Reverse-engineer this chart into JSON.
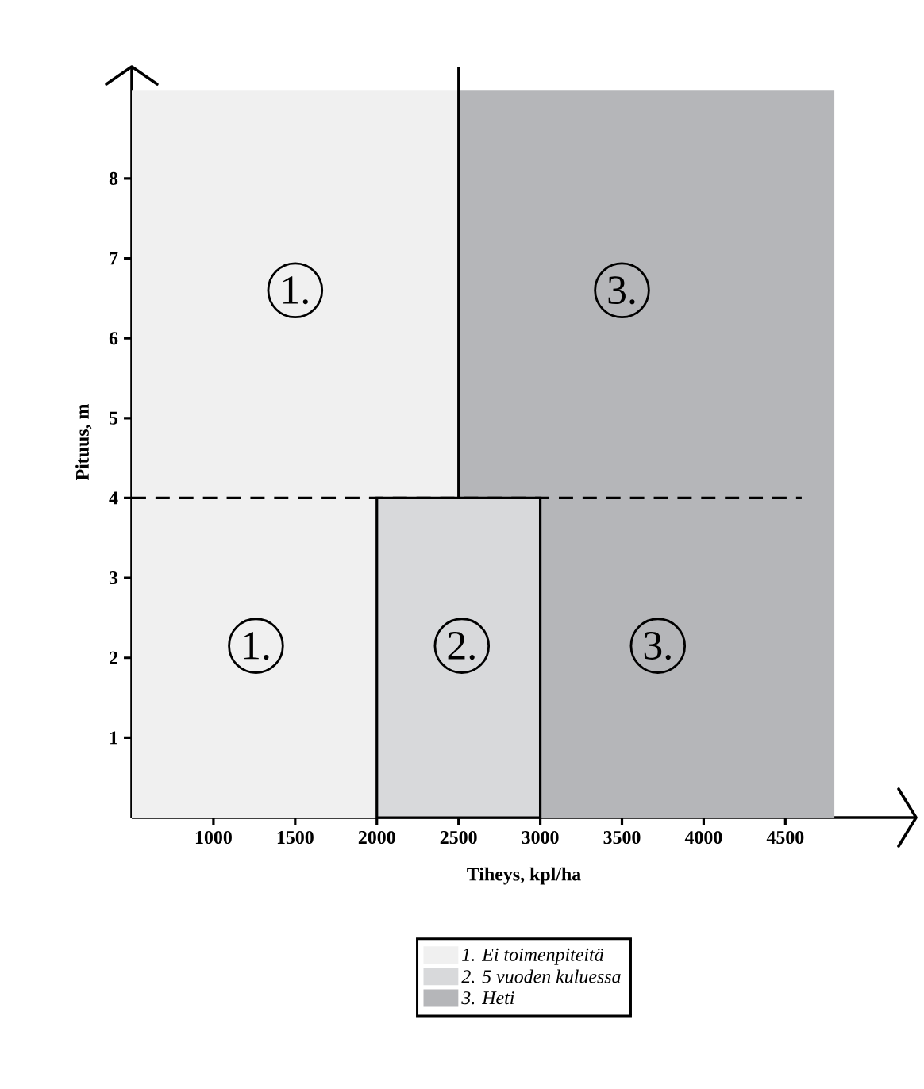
{
  "chart_data": {
    "type": "area",
    "xlabel": "Tiheys, kpl/ha",
    "ylabel": "Pituus, m",
    "xlim": [
      500,
      5300
    ],
    "ylim": [
      0,
      9.4
    ],
    "xticks": [
      1000,
      1500,
      2000,
      2500,
      3000,
      3500,
      4000,
      4500
    ],
    "yticks": [
      1,
      2,
      3,
      4,
      5,
      6,
      7,
      8
    ],
    "series": [
      {
        "name": "1. Ei toimenpiteitä",
        "color": "#f0f0f0",
        "x": [
          500,
          2500
        ],
        "values": [
          9.1,
          9.1
        ]
      },
      {
        "name": "2. 5 vuoden kuluessa",
        "color": "#d8d9db",
        "x": [
          2000,
          3000
        ],
        "values": [
          4,
          4
        ]
      },
      {
        "name": "3. Heti",
        "color": "#b5b6b9",
        "x": [
          2500,
          4800
        ],
        "values": [
          9.1,
          9.1
        ]
      }
    ],
    "ref_lines": [
      {
        "axis": "y",
        "value": 4,
        "line_style": "dashed",
        "color": "#000000"
      },
      {
        "axis": "x",
        "value": 2500,
        "line_style": "solid",
        "color": "#000000"
      }
    ],
    "annotations": [
      {
        "text": "1.",
        "x": 1500,
        "y": 6.6
      },
      {
        "text": "1.",
        "x": 1260,
        "y": 2.15
      },
      {
        "text": "2.",
        "x": 2520,
        "y": 2.15
      },
      {
        "text": "3.",
        "x": 3500,
        "y": 6.6
      },
      {
        "text": "3.",
        "x": 3720,
        "y": 2.15
      }
    ],
    "legend": "bottom"
  }
}
